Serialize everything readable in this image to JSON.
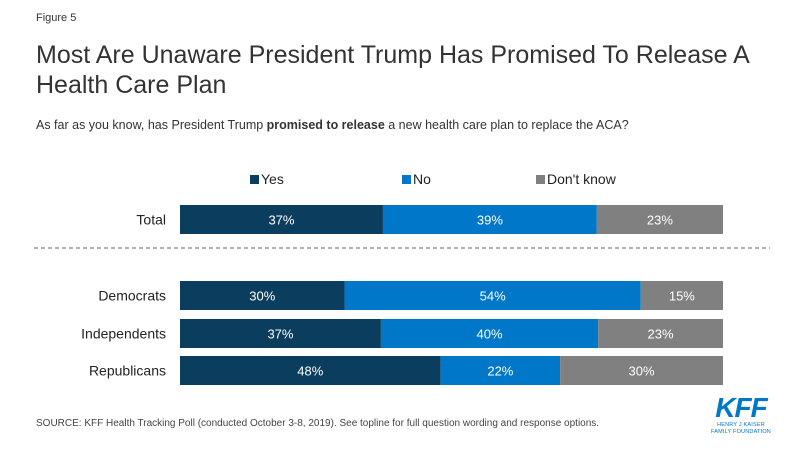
{
  "figure_label": "Figure 5",
  "title": "Most Are Unaware President Trump Has Promised To Release A Health Care Plan",
  "subtitle": {
    "before": "As far as you know, has President Trump ",
    "bold": "promised to release",
    "after": " a new health care plan to replace the ACA?"
  },
  "chart_data": {
    "type": "bar",
    "orientation": "horizontal",
    "stacked": true,
    "categories": [
      "Total",
      "Democrats",
      "Independents",
      "Republicans"
    ],
    "series": [
      {
        "name": "Yes",
        "color": "#0b3d5e",
        "values": [
          37,
          30,
          37,
          48
        ]
      },
      {
        "name": "No",
        "color": "#0077c8",
        "values": [
          39,
          54,
          40,
          22
        ]
      },
      {
        "name": "Don't know",
        "color": "#808080",
        "values": [
          23,
          15,
          23,
          30
        ]
      }
    ],
    "value_format": "{v}%",
    "legend_position": "top",
    "separator_after": "Total",
    "grid": false
  },
  "source": "SOURCE: KFF Health Tracking Poll (conducted October 3-8, 2019). See topline for full question wording and response options.",
  "logo": {
    "mark": "KFF",
    "line1": "HENRY J KAISER",
    "line2": "FAMILY FOUNDATION"
  }
}
